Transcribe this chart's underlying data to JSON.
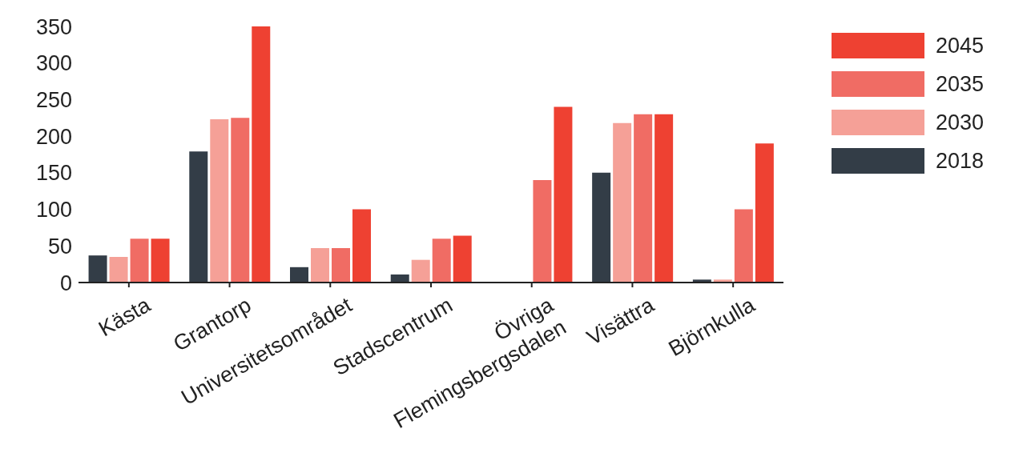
{
  "chart_data": {
    "type": "bar",
    "categories": [
      "Kästa",
      "Grantorp",
      "Universitetsområdet",
      "Stadscentrum",
      "Övriga Flemingsbergsdalen",
      "Visättra",
      "Björnkulla"
    ],
    "series": [
      {
        "name": "2018",
        "color": "#333d47",
        "values": [
          37,
          179,
          21,
          11,
          0,
          150,
          4
        ]
      },
      {
        "name": "2030",
        "color": "#f5a097",
        "values": [
          35,
          223,
          47,
          31,
          0,
          218,
          4
        ]
      },
      {
        "name": "2035",
        "color": "#f06c64",
        "values": [
          60,
          225,
          47,
          60,
          140,
          230,
          100
        ]
      },
      {
        "name": "2045",
        "color": "#ee4132",
        "values": [
          60,
          350,
          100,
          64,
          240,
          230,
          190
        ]
      }
    ],
    "ylim": [
      0,
      350
    ],
    "yticks": [
      0,
      50,
      100,
      150,
      200,
      250,
      300,
      350
    ],
    "grid": false,
    "legend": "top right"
  }
}
